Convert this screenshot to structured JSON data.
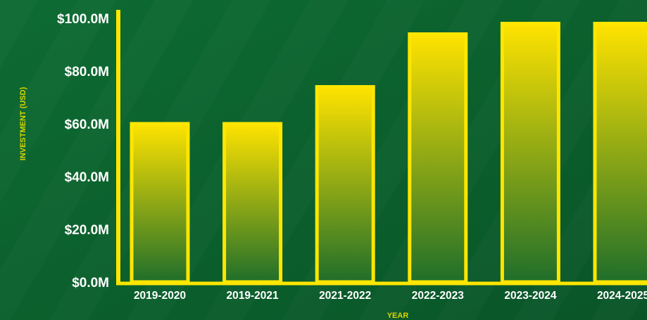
{
  "chart_data": {
    "type": "bar",
    "title": "",
    "xlabel": "YEAR",
    "ylabel": "INVESTMENT (USD)",
    "categories": [
      "2019-2020",
      "2019-2021",
      "2021-2022",
      "2022-2023",
      "2023-2024",
      "2024-2025"
    ],
    "values": [
      60,
      60,
      74,
      94,
      98,
      98
    ],
    "unit": "M USD",
    "ylim": [
      0,
      100
    ],
    "yticks": [
      "$0.0M",
      "$20.0M",
      "$40.0M",
      "$60.0M",
      "$80.0M",
      "$100.0M"
    ],
    "ytick_values": [
      0,
      20,
      40,
      60,
      80,
      100
    ],
    "grid": false,
    "legend": "none"
  },
  "colors": {
    "background_dark": "#0a5a2a",
    "background_light": "#0f7a3a",
    "bar_top": "#ffe300",
    "bar_bottom": "#1f6e2a",
    "bar_outline": "#ffe600",
    "axis_line": "#ffe600",
    "tick_text": "#ffffff",
    "axis_title_text": "#d8d400"
  }
}
